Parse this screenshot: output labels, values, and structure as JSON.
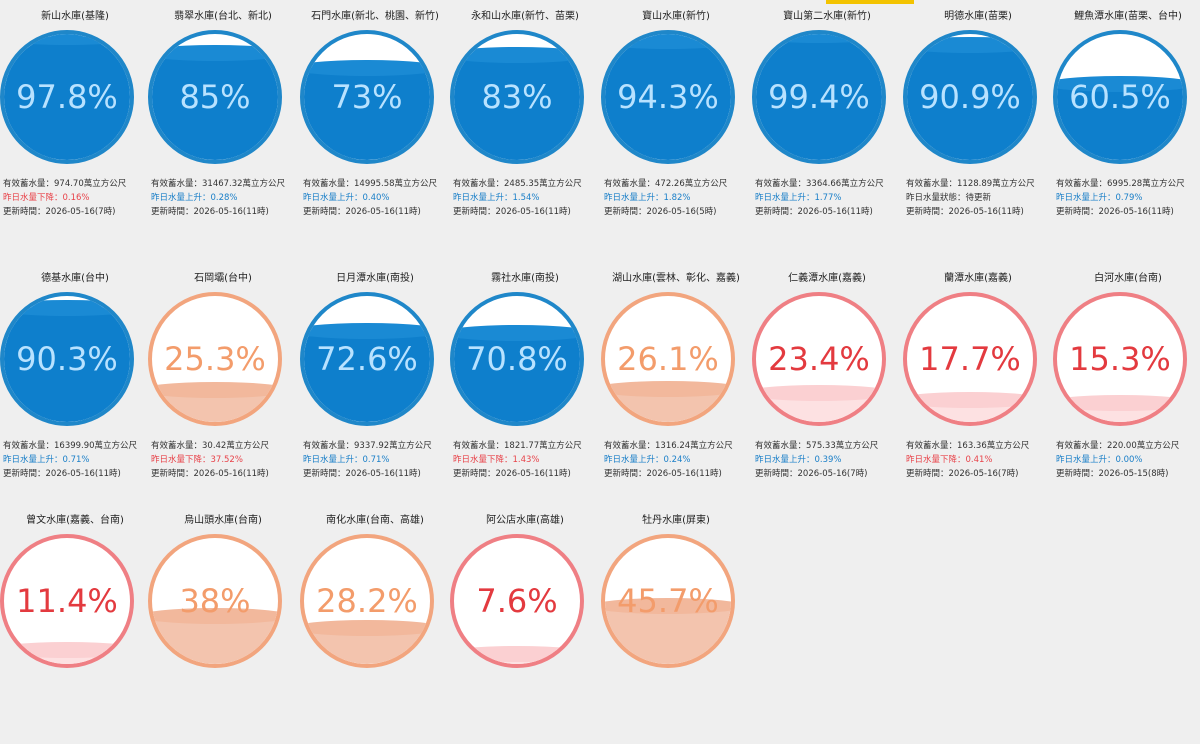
{
  "reservoirs": [
    {
      "name": "新山水庫(基隆)",
      "percent_text": "97.8%",
      "level": 0.978,
      "theme": "blue",
      "storage": "有效蓄水量：974.70萬立方公尺",
      "trend": "昨日水量下降：0.16%",
      "trend_dir": "down",
      "updated": "更新時間：2026-05-16(7時)"
    },
    {
      "name": "翡翠水庫(台北、新北)",
      "percent_text": "85%",
      "level": 0.85,
      "theme": "blue",
      "storage": "有效蓄水量：31467.32萬立方公尺",
      "trend": "昨日水量上升：0.28%",
      "trend_dir": "up",
      "updated": "更新時間：2026-05-16(11時)"
    },
    {
      "name": "石門水庫(新北、桃園、新竹)",
      "percent_text": "73%",
      "level": 0.73,
      "theme": "blue",
      "storage": "有效蓄水量：14995.58萬立方公尺",
      "trend": "昨日水量上升：0.40%",
      "trend_dir": "up",
      "updated": "更新時間：2026-05-16(11時)"
    },
    {
      "name": "永和山水庫(新竹、苗栗)",
      "percent_text": "83%",
      "level": 0.83,
      "theme": "blue",
      "storage": "有效蓄水量：2485.35萬立方公尺",
      "trend": "昨日水量上升：1.54%",
      "trend_dir": "up",
      "updated": "更新時間：2026-05-16(11時)"
    },
    {
      "name": "寶山水庫(新竹)",
      "percent_text": "94.3%",
      "level": 0.943,
      "theme": "blue",
      "storage": "有效蓄水量：472.26萬立方公尺",
      "trend": "昨日水量上升：1.82%",
      "trend_dir": "up",
      "updated": "更新時間：2026-05-16(5時)"
    },
    {
      "name": "寶山第二水庫(新竹)",
      "percent_text": "99.4%",
      "level": 0.994,
      "theme": "blue",
      "storage": "有效蓄水量：3364.66萬立方公尺",
      "trend": "昨日水量上升：1.77%",
      "trend_dir": "up",
      "updated": "更新時間：2026-05-16(11時)"
    },
    {
      "name": "明德水庫(苗栗)",
      "percent_text": "90.9%",
      "level": 0.909,
      "theme": "blue",
      "storage": "有效蓄水量：1128.89萬立方公尺",
      "trend": "昨日水量狀態：待更新",
      "trend_dir": "neutral",
      "updated": "更新時間：2026-05-16(11時)"
    },
    {
      "name": "鯉魚潭水庫(苗栗、台中)",
      "percent_text": "60.5%",
      "level": 0.605,
      "theme": "blue",
      "storage": "有效蓄水量：6995.28萬立方公尺",
      "trend": "昨日水量上升：0.79%",
      "trend_dir": "up",
      "updated": "更新時間：2026-05-16(11時)"
    },
    {
      "name": "德基水庫(台中)",
      "percent_text": "90.3%",
      "level": 0.903,
      "theme": "blue",
      "storage": "有效蓄水量：16399.90萬立方公尺",
      "trend": "昨日水量上升：0.71%",
      "trend_dir": "up",
      "updated": "更新時間：2026-05-16(11時)"
    },
    {
      "name": "石岡壩(台中)",
      "percent_text": "25.3%",
      "level": 0.253,
      "theme": "orange",
      "storage": "有效蓄水量：30.42萬立方公尺",
      "trend": "昨日水量下降：37.52%",
      "trend_dir": "down",
      "updated": "更新時間：2026-05-16(11時)"
    },
    {
      "name": "日月潭水庫(南投)",
      "percent_text": "72.6%",
      "level": 0.726,
      "theme": "blue",
      "storage": "有效蓄水量：9337.92萬立方公尺",
      "trend": "昨日水量上升：0.71%",
      "trend_dir": "up",
      "updated": "更新時間：2026-05-16(11時)"
    },
    {
      "name": "霧社水庫(南投)",
      "percent_text": "70.8%",
      "level": 0.708,
      "theme": "blue",
      "storage": "有效蓄水量：1821.77萬立方公尺",
      "trend": "昨日水量下降：1.43%",
      "trend_dir": "down",
      "updated": "更新時間：2026-05-16(11時)"
    },
    {
      "name": "湖山水庫(雲林、彰化、嘉義)",
      "percent_text": "26.1%",
      "level": 0.261,
      "theme": "orange",
      "storage": "有效蓄水量：1316.24萬立方公尺",
      "trend": "昨日水量上升：0.24%",
      "trend_dir": "up",
      "updated": "更新時間：2026-05-16(11時)"
    },
    {
      "name": "仁義潭水庫(嘉義)",
      "percent_text": "23.4%",
      "level": 0.234,
      "theme": "red",
      "storage": "有效蓄水量：575.33萬立方公尺",
      "trend": "昨日水量上升：0.39%",
      "trend_dir": "up",
      "updated": "更新時間：2026-05-16(7時)"
    },
    {
      "name": "蘭潭水庫(嘉義)",
      "percent_text": "17.7%",
      "level": 0.177,
      "theme": "red",
      "storage": "有效蓄水量：163.36萬立方公尺",
      "trend": "昨日水量下降：0.41%",
      "trend_dir": "down",
      "updated": "更新時間：2026-05-16(7時)"
    },
    {
      "name": "白河水庫(台南)",
      "percent_text": "15.3%",
      "level": 0.153,
      "theme": "red",
      "storage": "有效蓄水量：220.00萬立方公尺",
      "trend": "昨日水量上升：0.00%",
      "trend_dir": "up",
      "updated": "更新時間：2026-05-15(8時)"
    },
    {
      "name": "曾文水庫(嘉義、台南)",
      "percent_text": "11.4%",
      "level": 0.114,
      "theme": "red",
      "storage": "",
      "trend": "",
      "trend_dir": "up",
      "updated": ""
    },
    {
      "name": "烏山頭水庫(台南)",
      "percent_text": "38%",
      "level": 0.38,
      "theme": "orange",
      "storage": "",
      "trend": "",
      "trend_dir": "up",
      "updated": ""
    },
    {
      "name": "南化水庫(台南、高雄)",
      "percent_text": "28.2%",
      "level": 0.282,
      "theme": "orange",
      "storage": "",
      "trend": "",
      "trend_dir": "up",
      "updated": ""
    },
    {
      "name": "阿公店水庫(高雄)",
      "percent_text": "7.6%",
      "level": 0.076,
      "theme": "red",
      "storage": "",
      "trend": "",
      "trend_dir": "up",
      "updated": ""
    },
    {
      "name": "牡丹水庫(屏東)",
      "percent_text": "45.7%",
      "level": 0.457,
      "theme": "orange",
      "storage": "",
      "trend": "",
      "trend_dir": "up",
      "updated": ""
    }
  ],
  "themes": {
    "blue": {
      "border": "#1f87c9",
      "fill": "#0e7fcc",
      "wave": "#1a8ad4",
      "text": "#b8e2ff"
    },
    "orange": {
      "border": "#f2a57e",
      "fill": "#f3c4ae",
      "wave": "#f2b89c",
      "text": "#f39c6b"
    },
    "red": {
      "border": "#ef7f84",
      "fill": "#fde1e2",
      "wave": "#fbd0d2",
      "text": "#e33a3f"
    }
  }
}
